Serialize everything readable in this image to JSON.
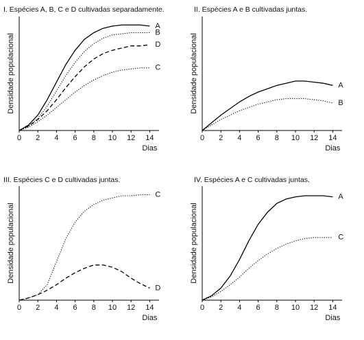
{
  "chart_data": [
    {
      "type": "line",
      "title": "I. Espécies A, B, C e D cultivadas separadamente.",
      "x_label": "Dias",
      "y_label": "Densidade populacional",
      "x": [
        0,
        1,
        2,
        3,
        4,
        5,
        6,
        7,
        8,
        9,
        10,
        11,
        12,
        13,
        14
      ],
      "xlim": [
        0,
        15
      ],
      "xticks": [
        0,
        2,
        4,
        6,
        8,
        10,
        12,
        14
      ],
      "ylim": [
        0,
        100
      ],
      "series": [
        {
          "name": "A",
          "color": "#000000",
          "style": "solid",
          "values": [
            0,
            5,
            14,
            28,
            44,
            60,
            73,
            83,
            89,
            93,
            95,
            96,
            96,
            96,
            95
          ]
        },
        {
          "name": "B",
          "color": "#000000",
          "style": "dotted",
          "values": [
            0,
            4,
            11,
            22,
            36,
            50,
            62,
            72,
            79,
            84,
            87,
            88,
            89,
            89,
            89
          ]
        },
        {
          "name": "D",
          "color": "#000000",
          "style": "dashed",
          "values": [
            0,
            4,
            10,
            18,
            28,
            39,
            49,
            58,
            65,
            70,
            73,
            75,
            77,
            77,
            78
          ]
        },
        {
          "name": "C",
          "color": "#000000",
          "style": "dotted",
          "values": [
            0,
            3,
            8,
            14,
            21,
            28,
            35,
            41,
            46,
            50,
            53,
            55,
            56,
            57,
            57
          ]
        }
      ]
    },
    {
      "type": "line",
      "title": "II. Espécies A e B cultivadas juntas.",
      "x_label": "Dias",
      "y_label": "Densidade populacional",
      "x": [
        0,
        1,
        2,
        3,
        4,
        5,
        6,
        7,
        8,
        9,
        10,
        11,
        12,
        13,
        14
      ],
      "xlim": [
        0,
        15
      ],
      "xticks": [
        0,
        2,
        4,
        6,
        8,
        10,
        12,
        14
      ],
      "ylim": [
        0,
        100
      ],
      "series": [
        {
          "name": "A",
          "color": "#000000",
          "style": "solid",
          "values": [
            0,
            7,
            14,
            20,
            26,
            31,
            35,
            38,
            41,
            43,
            45,
            45,
            44,
            43,
            41
          ]
        },
        {
          "name": "B",
          "color": "#000000",
          "style": "dotted",
          "values": [
            0,
            5,
            10,
            14,
            18,
            21,
            24,
            26,
            28,
            29,
            29,
            29,
            28,
            27,
            25
          ]
        }
      ]
    },
    {
      "type": "line",
      "title": "III. Espécies C e D cultivadas juntas.",
      "x_label": "Dias",
      "y_label": "Densidade populacional",
      "x": [
        0,
        1,
        2,
        3,
        4,
        5,
        6,
        7,
        8,
        9,
        10,
        11,
        12,
        13,
        14
      ],
      "xlim": [
        0,
        15
      ],
      "xticks": [
        0,
        2,
        4,
        6,
        8,
        10,
        12,
        14
      ],
      "ylim": [
        0,
        100
      ],
      "series": [
        {
          "name": "C",
          "color": "#000000",
          "style": "dotted",
          "values": [
            0,
            2,
            5,
            14,
            35,
            56,
            71,
            81,
            87,
            91,
            93,
            95,
            95,
            96,
            96
          ]
        },
        {
          "name": "D",
          "color": "#000000",
          "style": "dashed",
          "values": [
            0,
            2,
            5,
            9,
            14,
            20,
            25,
            29,
            32,
            32,
            30,
            26,
            20,
            15,
            11
          ]
        }
      ]
    },
    {
      "type": "line",
      "title": "IV. Espécies A e C cultivadas juntas.",
      "x_label": "Dias",
      "y_label": "Densidade populacional",
      "x": [
        0,
        1,
        2,
        3,
        4,
        5,
        6,
        7,
        8,
        9,
        10,
        11,
        12,
        13,
        14
      ],
      "xlim": [
        0,
        15
      ],
      "xticks": [
        0,
        2,
        4,
        6,
        8,
        10,
        12,
        14
      ],
      "ylim": [
        0,
        100
      ],
      "series": [
        {
          "name": "A",
          "color": "#000000",
          "style": "solid",
          "values": [
            0,
            4,
            11,
            22,
            37,
            54,
            69,
            80,
            88,
            92,
            94,
            95,
            95,
            95,
            94
          ]
        },
        {
          "name": "C",
          "color": "#000000",
          "style": "dotted",
          "values": [
            0,
            3,
            8,
            14,
            21,
            29,
            36,
            42,
            47,
            51,
            54,
            56,
            57,
            57,
            57
          ]
        }
      ]
    }
  ]
}
